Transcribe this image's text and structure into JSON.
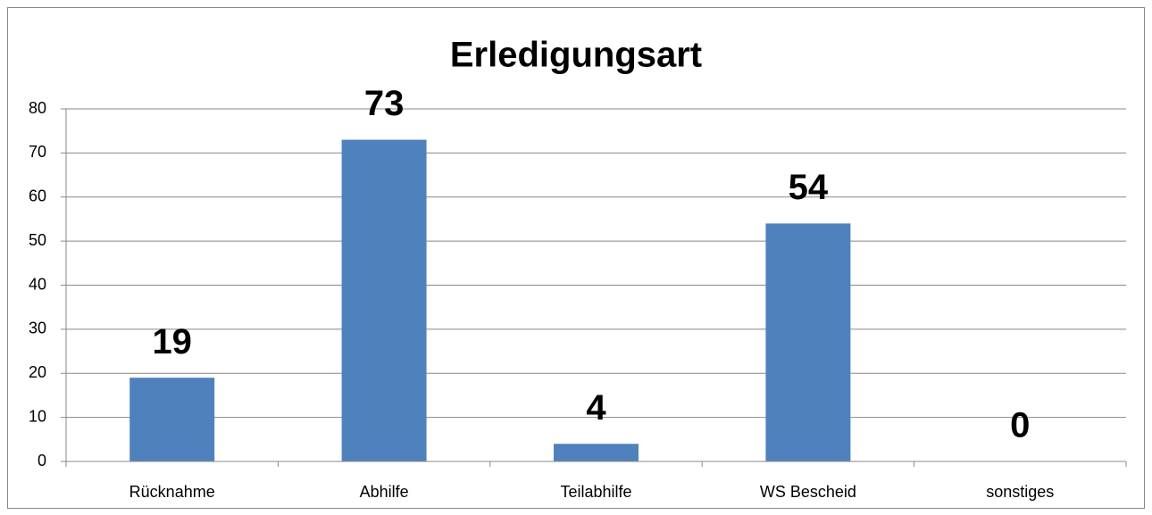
{
  "chart_data": {
    "type": "bar",
    "title": "Erledigungsart",
    "categories": [
      "Rücknahme",
      "Abhilfe",
      "Teilabhilfe",
      "WS Bescheid",
      "sonstiges"
    ],
    "values": [
      19,
      73,
      4,
      54,
      0
    ],
    "color": "#4f81bd",
    "ylim": [
      0,
      80
    ],
    "yticks": [
      0,
      10,
      20,
      30,
      40,
      50,
      60,
      70,
      80
    ],
    "grid": true,
    "data_labels": true
  }
}
